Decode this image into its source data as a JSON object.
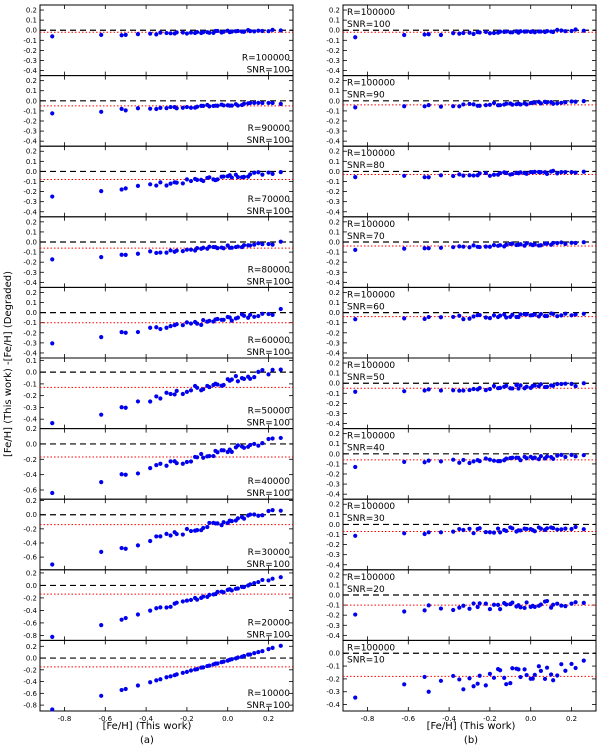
{
  "figure": {
    "ylabel": "[Fe/H] (This work) -[Fe/H] (Degraded)",
    "xlabel_left": "[Fe/H] (This work)",
    "xlabel_right": "[Fe/H] (This work)",
    "sublabel_left": "(a)",
    "sublabel_right": "(b)",
    "x_ticks": [
      "-0.8",
      "-0.6",
      "-0.4",
      "-0.2",
      "0.0",
      "0.2"
    ]
  },
  "colors": {
    "points": "#0000ee",
    "zero_line": "#000000",
    "mean_line": "#ff0000"
  },
  "chart_data": [
    {
      "type": "scatter",
      "column": "a",
      "label_lines": [
        "R=100000",
        "SNR=100"
      ],
      "label_pos": "bottom-right",
      "ylim": [
        -0.45,
        0.25
      ],
      "yticks": [
        0.2,
        0.1,
        0.0,
        -0.1,
        -0.2,
        -0.3,
        -0.4
      ],
      "mean": -0.02,
      "trend": {
        "x": [
          -0.85,
          0.25
        ],
        "y": [
          -0.06,
          0.0
        ]
      },
      "noise": 0.01
    },
    {
      "type": "scatter",
      "column": "a",
      "label_lines": [
        "R=90000",
        "SNR=100"
      ],
      "label_pos": "bottom-right",
      "ylim": [
        -0.45,
        0.25
      ],
      "yticks": [
        0.2,
        0.1,
        0.0,
        -0.1,
        -0.2,
        -0.3,
        -0.4
      ],
      "mean": -0.05,
      "trend": {
        "x": [
          -0.85,
          0.25
        ],
        "y": [
          -0.12,
          -0.02
        ]
      },
      "noise": 0.012
    },
    {
      "type": "scatter",
      "column": "a",
      "label_lines": [
        "R=70000",
        "SNR=100"
      ],
      "label_pos": "bottom-right",
      "ylim": [
        -0.45,
        0.25
      ],
      "yticks": [
        0.2,
        0.1,
        0.0,
        -0.1,
        -0.2,
        -0.3,
        -0.4
      ],
      "mean": -0.08,
      "trend": {
        "x": [
          -0.85,
          0.25
        ],
        "y": [
          -0.24,
          0.0
        ]
      },
      "noise": 0.02
    },
    {
      "type": "scatter",
      "column": "a",
      "label_lines": [
        "R=80000",
        "SNR=100"
      ],
      "label_pos": "bottom-right",
      "ylim": [
        -0.45,
        0.25
      ],
      "yticks": [
        0.2,
        0.1,
        0.0,
        -0.1,
        -0.2,
        -0.3,
        -0.4
      ],
      "mean": -0.06,
      "trend": {
        "x": [
          -0.85,
          0.25
        ],
        "y": [
          -0.17,
          -0.01
        ]
      },
      "noise": 0.015
    },
    {
      "type": "scatter",
      "column": "a",
      "label_lines": [
        "R=60000",
        "SNR=100"
      ],
      "label_pos": "bottom-right",
      "ylim": [
        -0.45,
        0.25
      ],
      "yticks": [
        0.2,
        0.1,
        0.0,
        -0.1,
        -0.2,
        -0.3,
        -0.4
      ],
      "mean": -0.1,
      "trend": {
        "x": [
          -0.85,
          0.25
        ],
        "y": [
          -0.31,
          0.01
        ]
      },
      "noise": 0.025
    },
    {
      "type": "scatter",
      "column": "a",
      "label_lines": [
        "R=50000",
        "SNR=100"
      ],
      "label_pos": "bottom-right",
      "ylim": [
        -0.48,
        0.12
      ],
      "yticks": [
        0.1,
        0.0,
        -0.1,
        -0.2,
        -0.3,
        -0.4
      ],
      "mean": -0.13,
      "trend": {
        "x": [
          -0.85,
          0.25
        ],
        "y": [
          -0.43,
          0.03
        ]
      },
      "noise": 0.03
    },
    {
      "type": "scatter",
      "column": "a",
      "label_lines": [
        "R=40000",
        "SNR=100"
      ],
      "label_pos": "bottom-right",
      "ylim": [
        -0.72,
        0.2
      ],
      "yticks": [
        0.2,
        0.0,
        -0.2,
        -0.4,
        -0.6
      ],
      "mean": -0.17,
      "trend": {
        "x": [
          -0.85,
          0.25
        ],
        "y": [
          -0.62,
          0.07
        ]
      },
      "noise": 0.04
    },
    {
      "type": "scatter",
      "column": "a",
      "label_lines": [
        "R=30000",
        "SNR=100"
      ],
      "label_pos": "bottom-right",
      "ylim": [
        -0.78,
        0.22
      ],
      "yticks": [
        0.2,
        0.0,
        -0.2,
        -0.4,
        -0.6
      ],
      "mean": -0.14,
      "trend": {
        "x": [
          -0.85,
          0.25
        ],
        "y": [
          -0.7,
          0.09
        ]
      },
      "noise": 0.04
    },
    {
      "type": "scatter",
      "column": "a",
      "label_lines": [
        "R=20000",
        "SNR=100"
      ],
      "label_pos": "bottom-right",
      "ylim": [
        -0.88,
        0.25
      ],
      "yticks": [
        0.2,
        0.0,
        -0.2,
        -0.4,
        -0.6,
        -0.8
      ],
      "mean": -0.14,
      "trend": {
        "x": [
          -0.85,
          0.25
        ],
        "y": [
          -0.82,
          0.14
        ]
      },
      "noise": 0.02
    },
    {
      "type": "scatter",
      "column": "a",
      "label_lines": [
        "R=10000",
        "SNR=100"
      ],
      "label_pos": "bottom-right",
      "ylim": [
        -0.9,
        0.3
      ],
      "yticks": [
        0.2,
        0.0,
        -0.2,
        -0.4,
        -0.6,
        -0.8
      ],
      "mean": -0.15,
      "trend": {
        "x": [
          -0.85,
          0.25
        ],
        "y": [
          -0.86,
          0.2
        ]
      },
      "noise": 0.005
    },
    {
      "type": "scatter",
      "column": "b",
      "label_lines": [
        "R=100000",
        "SNR=100"
      ],
      "label_pos": "top-left",
      "ylim": [
        -0.45,
        0.25
      ],
      "yticks": [
        0.2,
        0.1,
        0.0,
        -0.1,
        -0.2,
        -0.3,
        -0.4
      ],
      "mean": -0.02,
      "trend": {
        "x": [
          -0.85,
          0.25
        ],
        "y": [
          -0.06,
          0.0
        ]
      },
      "noise": 0.01
    },
    {
      "type": "scatter",
      "column": "b",
      "label_lines": [
        "R=100000",
        "SNR=90"
      ],
      "label_pos": "top-left",
      "ylim": [
        -0.45,
        0.25
      ],
      "yticks": [
        0.2,
        0.1,
        0.0,
        -0.1,
        -0.2,
        -0.3,
        -0.4
      ],
      "mean": -0.04,
      "trend": {
        "x": [
          -0.85,
          0.25
        ],
        "y": [
          -0.07,
          -0.01
        ]
      },
      "noise": 0.012
    },
    {
      "type": "scatter",
      "column": "b",
      "label_lines": [
        "R=100000",
        "SNR=80"
      ],
      "label_pos": "top-left",
      "ylim": [
        -0.45,
        0.25
      ],
      "yticks": [
        0.2,
        0.1,
        0.0,
        -0.1,
        -0.2,
        -0.3,
        -0.4
      ],
      "mean": -0.03,
      "trend": {
        "x": [
          -0.85,
          0.25
        ],
        "y": [
          -0.07,
          0.0
        ]
      },
      "noise": 0.015
    },
    {
      "type": "scatter",
      "column": "b",
      "label_lines": [
        "R=100000",
        "SNR=70"
      ],
      "label_pos": "top-left",
      "ylim": [
        -0.45,
        0.25
      ],
      "yticks": [
        0.2,
        0.1,
        0.0,
        -0.1,
        -0.2,
        -0.3,
        -0.4
      ],
      "mean": -0.04,
      "trend": {
        "x": [
          -0.85,
          0.25
        ],
        "y": [
          -0.07,
          -0.01
        ]
      },
      "noise": 0.015
    },
    {
      "type": "scatter",
      "column": "b",
      "label_lines": [
        "R=100000",
        "SNR=60"
      ],
      "label_pos": "top-left",
      "ylim": [
        -0.45,
        0.25
      ],
      "yticks": [
        0.2,
        0.1,
        0.0,
        -0.1,
        -0.2,
        -0.3,
        -0.4
      ],
      "mean": -0.04,
      "trend": {
        "x": [
          -0.85,
          0.25
        ],
        "y": [
          -0.08,
          -0.01
        ]
      },
      "noise": 0.018
    },
    {
      "type": "scatter",
      "column": "b",
      "label_lines": [
        "R=100000",
        "SNR=50"
      ],
      "label_pos": "top-left",
      "ylim": [
        -0.45,
        0.25
      ],
      "yticks": [
        0.2,
        0.1,
        0.0,
        -0.1,
        -0.2,
        -0.3,
        -0.4
      ],
      "mean": -0.05,
      "trend": {
        "x": [
          -0.85,
          0.25
        ],
        "y": [
          -0.1,
          -0.01
        ]
      },
      "noise": 0.02
    },
    {
      "type": "scatter",
      "column": "b",
      "label_lines": [
        "R=100000",
        "SNR=40"
      ],
      "label_pos": "top-left",
      "ylim": [
        -0.45,
        0.25
      ],
      "yticks": [
        0.2,
        0.1,
        0.0,
        -0.1,
        -0.2,
        -0.3,
        -0.4
      ],
      "mean": -0.06,
      "trend": {
        "x": [
          -0.85,
          0.25
        ],
        "y": [
          -0.12,
          -0.02
        ]
      },
      "noise": 0.022
    },
    {
      "type": "scatter",
      "column": "b",
      "label_lines": [
        "R=100000",
        "SNR=30"
      ],
      "label_pos": "top-left",
      "ylim": [
        -0.45,
        0.25
      ],
      "yticks": [
        0.2,
        0.1,
        0.0,
        -0.1,
        -0.2,
        -0.3,
        -0.4
      ],
      "mean": -0.07,
      "trend": {
        "x": [
          -0.85,
          0.25
        ],
        "y": [
          -0.1,
          -0.03
        ]
      },
      "noise": 0.025
    },
    {
      "type": "scatter",
      "column": "b",
      "label_lines": [
        "R=100000",
        "SNR=20"
      ],
      "label_pos": "top-left",
      "ylim": [
        -0.45,
        0.25
      ],
      "yticks": [
        0.2,
        0.1,
        0.0,
        -0.1,
        -0.2,
        -0.3,
        -0.4
      ],
      "mean": -0.1,
      "trend": {
        "x": [
          -0.85,
          0.25
        ],
        "y": [
          -0.16,
          -0.08
        ]
      },
      "noise": 0.035
    },
    {
      "type": "scatter",
      "column": "b",
      "label_lines": [
        "R=100000",
        "SNR=10"
      ],
      "label_pos": "top-left",
      "ylim": [
        -0.45,
        0.1
      ],
      "yticks": [
        0.0,
        -0.1,
        -0.2,
        -0.3,
        -0.4
      ],
      "mean": -0.18,
      "trend": {
        "x": [
          -0.85,
          0.25
        ],
        "y": [
          -0.3,
          -0.12
        ]
      },
      "noise": 0.07
    }
  ]
}
